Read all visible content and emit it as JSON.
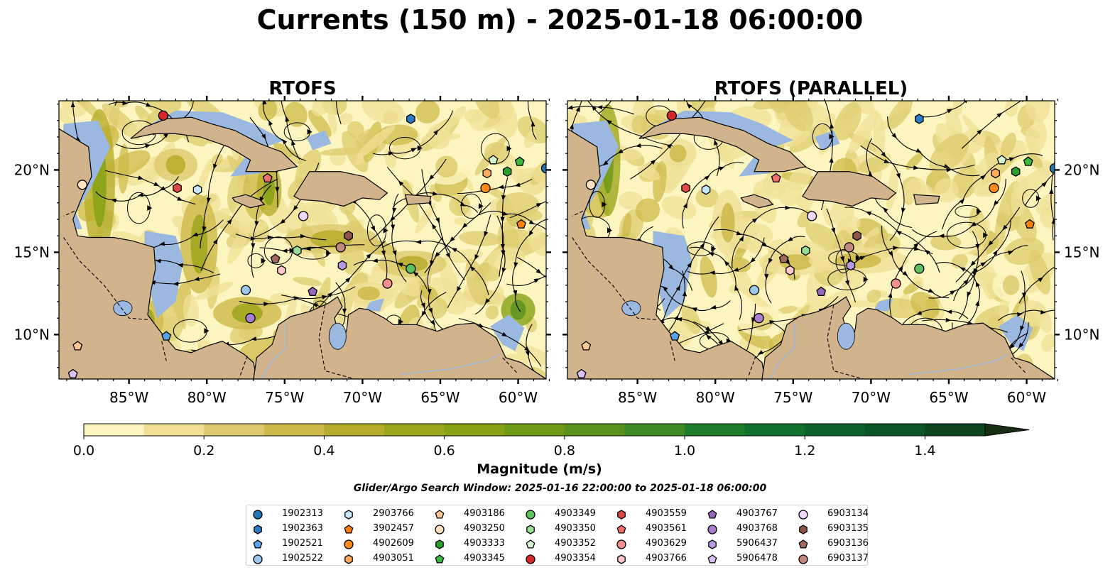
{
  "title": "Currents (150 m) - 2025-01-18 06:00:00",
  "search_window": "Glider/Argo Search Window: 2025-01-16 22:00:00 to 2025-01-18 06:00:00",
  "colors": {
    "land": "#d2b48c",
    "shallow_water": "#9ab8e0",
    "river": "#9ab8e0",
    "streamline": "#000000"
  },
  "chart_data": {
    "type": "map",
    "panels": [
      {
        "title": "RTOFS"
      },
      {
        "title": "RTOFS (PARALLEL)"
      }
    ],
    "x_ticks": [
      "85°W",
      "80°W",
      "75°W",
      "70°W",
      "65°W",
      "60°W"
    ],
    "x_tick_values": [
      -85,
      -80,
      -75,
      -70,
      -65,
      -60
    ],
    "y_ticks": [
      "10°N",
      "15°N",
      "20°N"
    ],
    "y_tick_values": [
      10,
      15,
      20
    ],
    "lon_range": [
      -89.5,
      -58.2
    ],
    "lat_range": [
      7.3,
      24.2
    ],
    "colorbar": {
      "label": "Magnitude (m/s)",
      "range": [
        0.0,
        1.5
      ],
      "ticks": [
        "0.0",
        "0.2",
        "0.4",
        "0.6",
        "0.8",
        "1.0",
        "1.2",
        "1.4"
      ],
      "tick_values": [
        0.0,
        0.2,
        0.4,
        0.6,
        0.8,
        1.0,
        1.2,
        1.4
      ],
      "extend": "max",
      "step": 0.1,
      "colors": [
        "#fdf5c0",
        "#efe096",
        "#dccb6e",
        "#cdb94a",
        "#b6ac2c",
        "#9ea61c",
        "#86a114",
        "#6f9a18",
        "#5a921e",
        "#3e8a23",
        "#1f7e2c",
        "#11722f",
        "#0c632d",
        "#0b5528",
        "#0f4622",
        "#13381c",
        "#182c16"
      ]
    },
    "platforms": [
      {
        "id": "1902313",
        "shape": "circle",
        "color": "#1f77b4",
        "lon": -58.2,
        "lat": 20.1
      },
      {
        "id": "1902363",
        "shape": "hexagon",
        "color": "#2b7bc8",
        "lon": -66.9,
        "lat": 23.1
      },
      {
        "id": "1902521",
        "shape": "pentagon",
        "color": "#5ba3e8",
        "lon": -82.6,
        "lat": 9.9
      },
      {
        "id": "1902522",
        "shape": "circle",
        "color": "#9cc8f0",
        "lon": -77.5,
        "lat": 12.7
      },
      {
        "id": "2903766",
        "shape": "hexagon",
        "color": "#c8e8ff",
        "lon": -80.6,
        "lat": 18.8
      },
      {
        "id": "3902457",
        "shape": "pentagon",
        "color": "#ff7f0e",
        "lon": -59.8,
        "lat": 16.7
      },
      {
        "id": "4902609",
        "shape": "circle",
        "color": "#ff8c1a",
        "lon": -62.1,
        "lat": 18.9
      },
      {
        "id": "4903051",
        "shape": "hexagon",
        "color": "#ffac5a",
        "lon": -62.0,
        "lat": 19.8
      },
      {
        "id": "4903186",
        "shape": "pentagon",
        "color": "#ffc896",
        "lon": -88.3,
        "lat": 9.3
      },
      {
        "id": "4903250",
        "shape": "circle",
        "color": "#ffe0c2",
        "lon": -88.0,
        "lat": 19.1
      },
      {
        "id": "4903333",
        "shape": "hexagon",
        "color": "#2ca02c",
        "lon": -60.7,
        "lat": 19.9
      },
      {
        "id": "4903345",
        "shape": "pentagon",
        "color": "#3cb83c",
        "lon": -59.9,
        "lat": 20.5
      },
      {
        "id": "4903349",
        "shape": "circle",
        "color": "#5fc05f",
        "lon": -66.9,
        "lat": 14.0
      },
      {
        "id": "4903350",
        "shape": "hexagon",
        "color": "#98e098",
        "lon": -74.2,
        "lat": 15.1
      },
      {
        "id": "4903352",
        "shape": "pentagon",
        "color": "#d4f5d0",
        "lon": -61.6,
        "lat": 20.6
      },
      {
        "id": "4903354",
        "shape": "circle",
        "color": "#d62728",
        "lon": -82.8,
        "lat": 23.3
      },
      {
        "id": "4903559",
        "shape": "hexagon",
        "color": "#e04848",
        "lon": -81.9,
        "lat": 18.9
      },
      {
        "id": "4903561",
        "shape": "pentagon",
        "color": "#f07070",
        "lon": -76.1,
        "lat": 19.5
      },
      {
        "id": "4903629",
        "shape": "circle",
        "color": "#f59090",
        "lon": -68.4,
        "lat": 13.1
      },
      {
        "id": "4903766",
        "shape": "hexagon",
        "color": "#ffc8c8",
        "lon": -75.2,
        "lat": 13.9
      },
      {
        "id": "4903767",
        "shape": "pentagon",
        "color": "#9467bd",
        "lon": -73.2,
        "lat": 12.6
      },
      {
        "id": "4903768",
        "shape": "circle",
        "color": "#a87fd0",
        "lon": -77.2,
        "lat": 11.0
      },
      {
        "id": "5906437",
        "shape": "hexagon",
        "color": "#b89ae0",
        "lon": -71.3,
        "lat": 14.2
      },
      {
        "id": "5906478",
        "shape": "pentagon",
        "color": "#d9c2f5",
        "lon": -88.6,
        "lat": 7.6
      },
      {
        "id": "6903134",
        "shape": "circle",
        "color": "#f0d8ff",
        "lon": -73.8,
        "lat": 17.2
      },
      {
        "id": "6903135",
        "shape": "hexagon",
        "color": "#8c564b",
        "lon": -70.9,
        "lat": 16.0
      },
      {
        "id": "6903136",
        "shape": "pentagon",
        "color": "#a06a5e",
        "lon": -75.6,
        "lat": 14.6
      },
      {
        "id": "6903137",
        "shape": "circle",
        "color": "#c08a80",
        "lon": -71.4,
        "lat": 15.3
      }
    ]
  }
}
